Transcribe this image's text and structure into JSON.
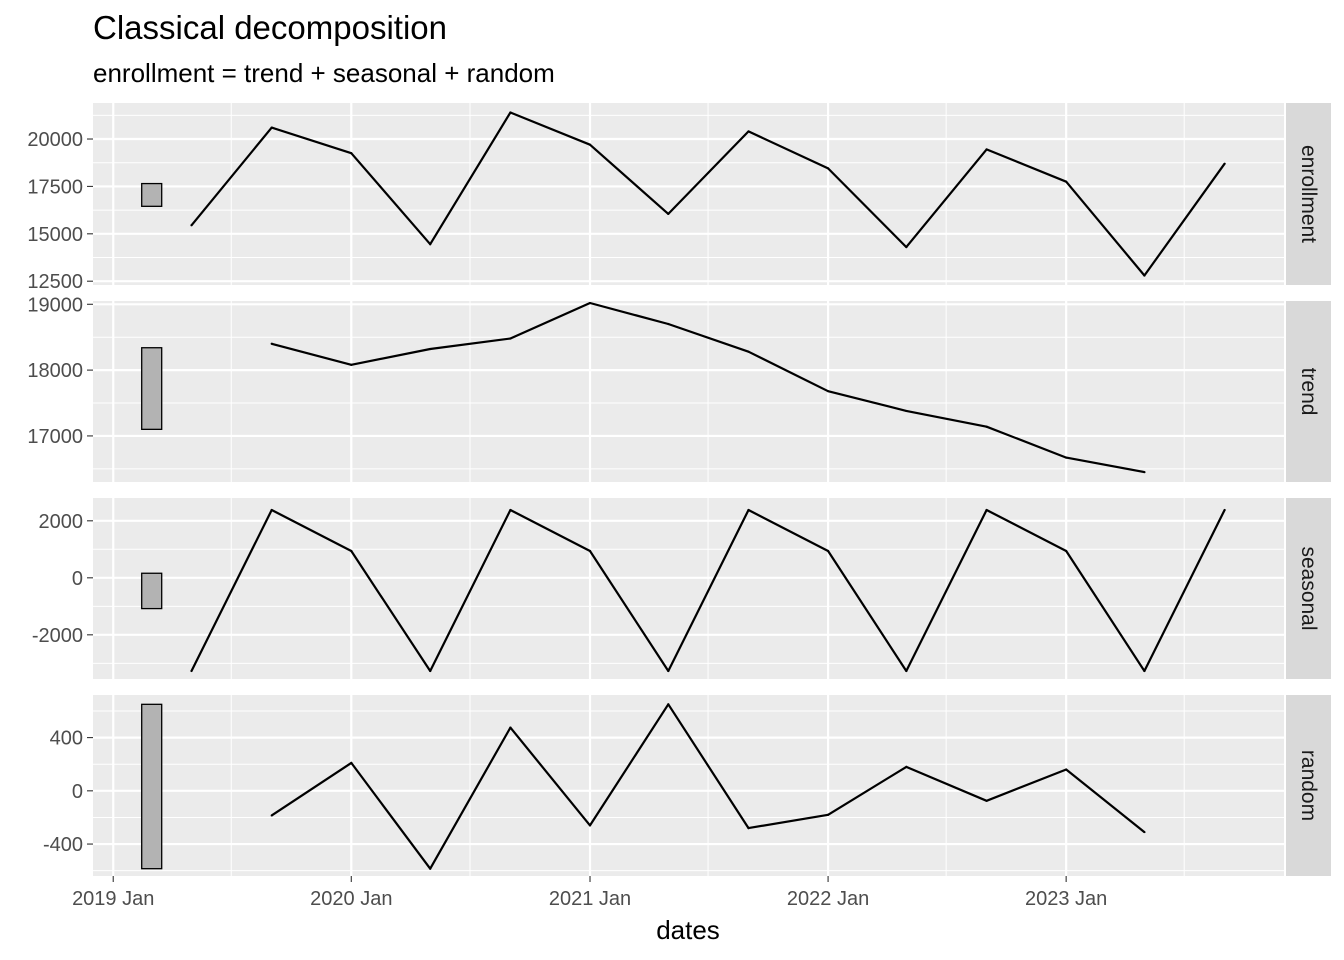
{
  "chart_data": {
    "type": "line",
    "title": "Classical decomposition",
    "subtitle": "enrollment = trend + seasonal + random",
    "xlabel": "dates",
    "x_axis": {
      "range": [
        "2018-12-01",
        "2023-12-01"
      ],
      "ticks": [
        {
          "date": "2019-01-01",
          "label": "2019 Jan"
        },
        {
          "date": "2020-01-01",
          "label": "2020 Jan"
        },
        {
          "date": "2021-01-01",
          "label": "2021 Jan"
        },
        {
          "date": "2022-01-01",
          "label": "2022 Jan"
        },
        {
          "date": "2023-01-01",
          "label": "2023 Jan"
        }
      ],
      "minor_ticks": [
        "2019-07-01",
        "2020-07-01",
        "2021-07-01",
        "2022-07-01",
        "2023-07-01"
      ]
    },
    "dates": [
      "2019-05-01",
      "2019-09-01",
      "2020-01-01",
      "2020-05-01",
      "2020-09-01",
      "2021-01-01",
      "2021-05-01",
      "2021-09-01",
      "2022-01-01",
      "2022-05-01",
      "2022-09-01",
      "2023-01-01",
      "2023-05-01",
      "2023-09-01"
    ],
    "panels": [
      {
        "name": "enrollment",
        "ylim": [
          12300,
          21900
        ],
        "yticks": [
          12500,
          15000,
          17500,
          20000
        ],
        "yticks_minor": [
          13750,
          16250,
          18750,
          21250
        ],
        "values": [
          15450,
          20600,
          19250,
          14450,
          21400,
          19700,
          16050,
          20400,
          18450,
          14300,
          19450,
          17750,
          12800,
          18700
        ],
        "scale_bar": [
          16450,
          17650
        ]
      },
      {
        "name": "trend",
        "ylim": [
          16300,
          19050
        ],
        "yticks": [
          17000,
          18000,
          19000
        ],
        "yticks_minor": [
          16500,
          17500,
          18500
        ],
        "values": [
          null,
          18400,
          18080,
          18320,
          18480,
          19020,
          18700,
          18280,
          17680,
          17380,
          17140,
          16670,
          16450,
          null
        ],
        "scale_bar": [
          17100,
          18340
        ]
      },
      {
        "name": "seasonal",
        "ylim": [
          -3550,
          2800
        ],
        "yticks": [
          -2000,
          0,
          2000
        ],
        "yticks_minor": [
          -3000,
          -1000,
          1000
        ],
        "values": [
          -3270,
          2380,
          940,
          -3270,
          2380,
          940,
          -3270,
          2380,
          940,
          -3270,
          2380,
          940,
          -3270,
          2380
        ],
        "scale_bar": [
          -1080,
          160
        ]
      },
      {
        "name": "random",
        "ylim": [
          -640,
          720
        ],
        "yticks": [
          -400,
          0,
          400
        ],
        "yticks_minor": [
          -600,
          -200,
          200,
          600
        ],
        "values": [
          null,
          -185,
          210,
          -585,
          475,
          -260,
          650,
          -280,
          -180,
          180,
          -75,
          160,
          -310,
          null
        ],
        "scale_bar": [
          -585,
          650
        ]
      }
    ],
    "grid": true,
    "legend": "none"
  }
}
